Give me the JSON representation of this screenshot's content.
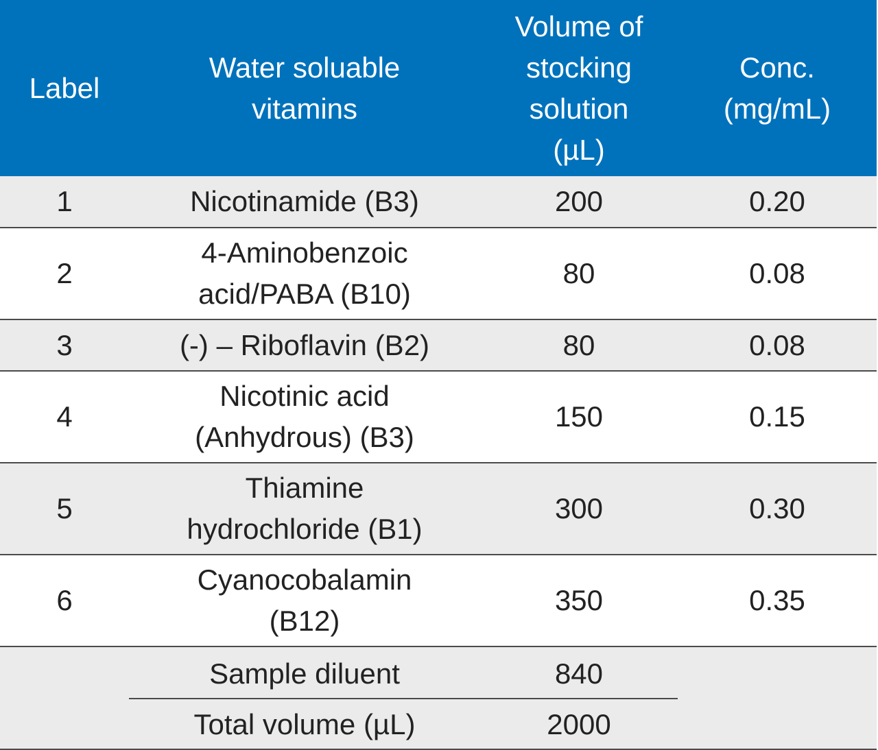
{
  "table": {
    "headers": {
      "label": "Label",
      "vitamin": "Water soluable vitamins",
      "volume": "Volume of stocking solution (µL)",
      "conc": "Conc. (mg/mL)"
    },
    "rows": [
      {
        "label": "1",
        "vitamin": "Nicotinamide (B3)",
        "volume": "200",
        "conc": "0.20"
      },
      {
        "label": "2",
        "vitamin": "4-Aminobenzoic acid/PABA (B10)",
        "volume": "80",
        "conc": "0.08"
      },
      {
        "label": "3",
        "vitamin": "(-) – Riboflavin (B2)",
        "volume": "80",
        "conc": "0.08"
      },
      {
        "label": "4",
        "vitamin": "Nicotinic acid (Anhydrous) (B3)",
        "volume": "150",
        "conc": "0.15"
      },
      {
        "label": "5",
        "vitamin": "Thiamine hydrochloride (B1)",
        "volume": "300",
        "conc": "0.30"
      },
      {
        "label": "6",
        "vitamin": "Cyanocobalamin (B12)",
        "volume": "350",
        "conc": "0.35"
      }
    ],
    "summary": {
      "diluent_label": "Sample diluent",
      "diluent_value": "840",
      "total_label": "Total volume (µL)",
      "total_value": "2000"
    }
  },
  "colors": {
    "header_bg": "#0072bc",
    "header_text": "#ffffff",
    "shaded_row": "#ebebeb",
    "rule": "#4a4a4a"
  }
}
